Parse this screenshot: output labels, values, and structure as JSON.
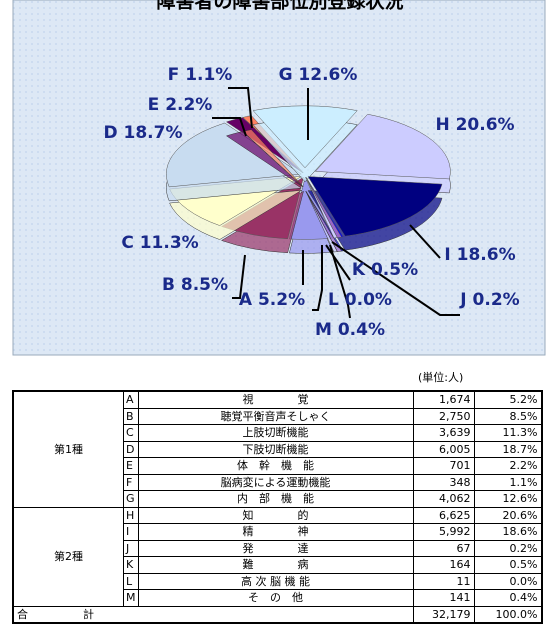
{
  "chart_data": {
    "type": "pie",
    "title": "障害者の障害部位別登録状況",
    "values": [
      5.2,
      8.5,
      11.3,
      18.7,
      2.2,
      1.1,
      12.6,
      20.6,
      18.6,
      0.2,
      0.5,
      0.0,
      0.4
    ],
    "value_labels": [
      "A 5.2%",
      "B 8.5%",
      "C 11.3%",
      "D 18.7%",
      "E 2.2%",
      "F 1.1%",
      "G 12.6%",
      "H 20.6%",
      "I 18.6%",
      "J 0.2%",
      "K 0.5%",
      "L 0.0%",
      "M 0.4%"
    ],
    "colors": [
      "#9999ee",
      "#993366",
      "#ffffcc",
      "#c8dcf0",
      "#660066",
      "#ff8060",
      "#cceeff",
      "#ccccff",
      "#000080",
      "#0000ff",
      "#9966cc",
      "#ccccff",
      "#ccccff"
    ]
  },
  "table": {
    "unit": "(単位:人)",
    "groups": [
      {
        "name": "第1種",
        "rows": [
          [
            "A",
            "視　　　　覚",
            "1,674",
            "5.2%"
          ],
          [
            "B",
            "聴覚平衡音声そしゃく",
            "2,750",
            "8.5%"
          ],
          [
            "C",
            "上肢切断機能",
            "3,639",
            "11.3%"
          ],
          [
            "D",
            "下肢切断機能",
            "6,005",
            "18.7%"
          ],
          [
            "E",
            "体　幹　機　能",
            "701",
            "2.2%"
          ],
          [
            "F",
            "脳病変による運動機能",
            "348",
            "1.1%"
          ],
          [
            "G",
            "内　部　機　能",
            "4,062",
            "12.6%"
          ]
        ]
      },
      {
        "name": "第2種",
        "rows": [
          [
            "H",
            "知　　　　的",
            "6,625",
            "20.6%"
          ],
          [
            "I",
            "精　　　　神",
            "5,992",
            "18.6%"
          ],
          [
            "J",
            "発　　　　達",
            "67",
            "0.2%"
          ],
          [
            "K",
            "難　　　　病",
            "164",
            "0.5%"
          ],
          [
            "L",
            "高 次 脳 機 能",
            "11",
            "0.0%"
          ],
          [
            "M",
            "そ　の　他",
            "141",
            "0.4%"
          ]
        ]
      }
    ],
    "total": [
      "合　　　　　計",
      "32,179",
      "100.0%"
    ]
  }
}
